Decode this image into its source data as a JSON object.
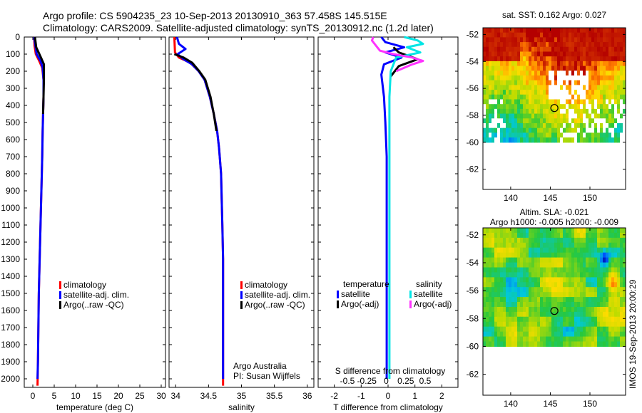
{
  "header": {
    "line1": "Argo profile: CS 5904235_23 10-Sep-2013 20130910_363 57.458S 145.515E",
    "line2": "Climatology: CARS2009. Satellite-adjusted climatology: synTS_20130912.nc (1.2d later)"
  },
  "footer": {
    "credit": "IMOS 19-Sep-2013 20:00:29"
  },
  "colors": {
    "climatology": "#ff0000",
    "satellite": "#0000ff",
    "argo": "#000000",
    "s_satellite": "#00e5e5",
    "s_argo": "#ff33ff",
    "map_missing": "#ffffff"
  },
  "chart_data": [
    {
      "type": "line",
      "id": "temperature",
      "xlabel": "temperature (deg C)",
      "ylabel": "",
      "xlim": [
        -2,
        31
      ],
      "ylim": [
        2050,
        0
      ],
      "xticks": [
        0,
        5,
        10,
        15,
        20,
        25,
        30
      ],
      "yticks": [
        0,
        100,
        200,
        300,
        400,
        500,
        600,
        700,
        800,
        900,
        1000,
        1100,
        1200,
        1300,
        1400,
        1500,
        1600,
        1700,
        1800,
        1900,
        2000
      ],
      "legend": [
        "climatology",
        "satellite-adj. clim.",
        "Argo(..raw -QC)"
      ],
      "series": [
        {
          "name": "climatology",
          "color": "#ff0000",
          "x": [
            0.3,
            0.4,
            0.7,
            1.5,
            2.2,
            2.5,
            2.5,
            2.4,
            2.3,
            2.2,
            2.1,
            2.0,
            1.9,
            1.8,
            1.7,
            1.6,
            1.5,
            1.4,
            1.3,
            1.2,
            1.1
          ],
          "y": [
            0,
            50,
            100,
            140,
            180,
            250,
            350,
            450,
            550,
            700,
            800,
            900,
            1000,
            1100,
            1200,
            1300,
            1400,
            1500,
            1700,
            1900,
            2040
          ]
        },
        {
          "name": "satellite-adj. clim.",
          "color": "#0000ff",
          "x": [
            0.3,
            0.6,
            0.9,
            1.8,
            2.3,
            2.5,
            2.5,
            2.4,
            2.3,
            2.2,
            2.1,
            2.0,
            1.9,
            1.8,
            1.7,
            1.6,
            1.5,
            1.4,
            1.3,
            1.2,
            1.1
          ],
          "y": [
            0,
            50,
            100,
            140,
            180,
            250,
            350,
            450,
            550,
            700,
            800,
            900,
            1000,
            1100,
            1200,
            1300,
            1400,
            1500,
            1700,
            1900,
            2000
          ]
        },
        {
          "name": "Argo(..raw -QC)",
          "color": "#000000",
          "x": [
            0.5,
            0.8,
            1.9,
            2.6,
            2.6,
            2.5,
            2.4
          ],
          "y": [
            0,
            60,
            120,
            160,
            250,
            350,
            450
          ]
        }
      ]
    },
    {
      "type": "line",
      "id": "salinity",
      "xlabel": "salinity",
      "xlim": [
        33.9,
        36.1
      ],
      "ylim": [
        2050,
        0
      ],
      "xticks": [
        34,
        34.5,
        35,
        35.5,
        36
      ],
      "legend": [
        "climatology",
        "satellite-adj. clim.",
        "Argo(..raw -QC)"
      ],
      "annotation": [
        "Argo Australia",
        "PI: Susan Wijffels"
      ],
      "series": [
        {
          "name": "climatology",
          "color": "#ff0000",
          "x": [
            33.98,
            33.99,
            34.05,
            34.22,
            34.35,
            34.44,
            34.52,
            34.58,
            34.63,
            34.66,
            34.69,
            34.7,
            34.71,
            34.72,
            34.72,
            34.72,
            34.72,
            34.72
          ],
          "y": [
            0,
            90,
            120,
            150,
            200,
            250,
            350,
            450,
            550,
            650,
            800,
            950,
            1100,
            1300,
            1500,
            1700,
            1900,
            2040
          ]
        },
        {
          "name": "satellite-adj. clim.",
          "color": "#0000ff",
          "x": [
            34.02,
            34.05,
            34.15,
            34.03,
            34.12,
            34.25,
            34.35,
            34.44,
            34.52,
            34.58,
            34.63,
            34.66,
            34.69,
            34.7,
            34.71,
            34.72,
            34.72,
            34.72,
            34.72,
            34.72
          ],
          "y": [
            0,
            40,
            70,
            100,
            130,
            160,
            200,
            250,
            350,
            450,
            550,
            650,
            800,
            950,
            1100,
            1300,
            1500,
            1700,
            1900,
            2000
          ]
        },
        {
          "name": "Argo(..raw -QC)",
          "color": "#000000",
          "x": [
            33.98,
            34.12,
            34.25,
            34.36,
            34.45,
            34.53,
            34.58,
            34.62
          ],
          "y": [
            100,
            120,
            150,
            200,
            250,
            350,
            450,
            550
          ]
        }
      ]
    },
    {
      "type": "line",
      "id": "difference",
      "xlabel": "T difference from climatology",
      "top_xlabel": "S difference from climatology",
      "xlim": [
        -2.6,
        2.6
      ],
      "ylim": [
        2050,
        0
      ],
      "xticks": [
        -2,
        -1,
        0,
        1,
        2
      ],
      "top_xticks": [
        -0.5,
        -0.25,
        0,
        0.25,
        0.5
      ],
      "legend_titles": [
        "temperature",
        "salinity"
      ],
      "legend": [
        "satellite",
        "Argo(-adj)",
        "satellite",
        "Argo(-adj)"
      ],
      "series": [
        {
          "name": "temperature satellite",
          "color": "#0000ff",
          "x": [
            -0.25,
            -0.1,
            0.6,
            -0.1,
            0.5,
            -0.15,
            -0.25,
            -0.15,
            -0.1,
            -0.05,
            -0.05,
            -0.05,
            -0.05,
            -0.05,
            -0.05,
            -0.05,
            -0.05
          ],
          "y": [
            0,
            30,
            60,
            90,
            120,
            160,
            220,
            350,
            500,
            700,
            900,
            1100,
            1300,
            1500,
            1700,
            1900,
            2000
          ]
        },
        {
          "name": "temperature Argo(-adj)",
          "color": "#000000",
          "x": [
            0.2,
            0.4,
            1.1,
            0.4,
            0.1
          ],
          "y": [
            60,
            90,
            130,
            170,
            230
          ]
        },
        {
          "name": "salinity satellite",
          "color": "#00e5e5",
          "x": [
            0.6,
            1.1,
            1.3,
            0.7,
            1.2,
            0.3,
            0.1,
            0.05,
            0.05,
            0.05,
            0.05,
            0.05,
            0.05,
            0.05,
            0.05,
            0.05,
            0.05
          ],
          "y": [
            0,
            20,
            40,
            60,
            90,
            120,
            200,
            350,
            500,
            700,
            900,
            1100,
            1300,
            1500,
            1700,
            1900,
            2000
          ]
        },
        {
          "name": "salinity Argo(-adj)",
          "color": "#ff33ff",
          "x": [
            -0.55,
            -0.6,
            -0.45,
            -0.3,
            0.2,
            0.9,
            1.3,
            0.9,
            0.3
          ],
          "y": [
            0,
            20,
            50,
            80,
            100,
            120,
            140,
            160,
            200
          ]
        }
      ]
    },
    {
      "type": "heatmap",
      "id": "sst-map",
      "title": "sat. SST: 0.162 Argo: 0.027",
      "xlim": [
        136.5,
        154.5
      ],
      "ylim": [
        -63.5,
        -51.5
      ],
      "data_top": -51.5,
      "data_bottom": -60,
      "xticks": [
        140,
        145,
        150
      ],
      "yticks": [
        -52,
        -54,
        -56,
        -58,
        -60,
        -62
      ],
      "marker": {
        "lon": 145.515,
        "lat": -57.458
      }
    },
    {
      "type": "heatmap",
      "id": "sla-map",
      "title": "Altim. SLA: -0.021",
      "subtitle": "Argo h1000: -0.005 h2000: -0.009",
      "xlim": [
        136.5,
        154.5
      ],
      "ylim": [
        -63.5,
        -51.5
      ],
      "data_top": -51.5,
      "data_bottom": -60,
      "xticks": [
        140,
        145,
        150
      ],
      "yticks": [
        -52,
        -54,
        -56,
        -58,
        -60,
        -62
      ],
      "marker": {
        "lon": 145.515,
        "lat": -57.458
      }
    }
  ]
}
